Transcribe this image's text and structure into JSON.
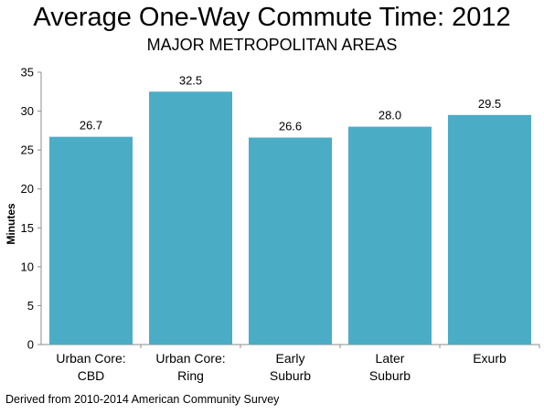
{
  "title": "Average One-Way Commute Time: 2012",
  "subtitle": "MAJOR METROPOLITAN AREAS",
  "footer": "Derived from 2010-2014 American Community Survey",
  "chart_data": {
    "type": "bar",
    "categories": [
      [
        "Urban Core:",
        "CBD"
      ],
      [
        "Urban Core:",
        "Ring"
      ],
      [
        "Early",
        "Suburb"
      ],
      [
        "Later",
        "Suburb"
      ],
      [
        "Exurb"
      ]
    ],
    "values": [
      26.7,
      32.5,
      26.6,
      28.0,
      29.5
    ],
    "value_labels": [
      "26.7",
      "32.5",
      "26.6",
      "28.0",
      "29.5"
    ],
    "ylabel": "Minutes",
    "xlabel": "",
    "ylim": [
      0,
      35
    ],
    "yticks": [
      0,
      5,
      10,
      15,
      20,
      25,
      30,
      35
    ],
    "grid": false,
    "bar_color": "#4BACC6"
  }
}
